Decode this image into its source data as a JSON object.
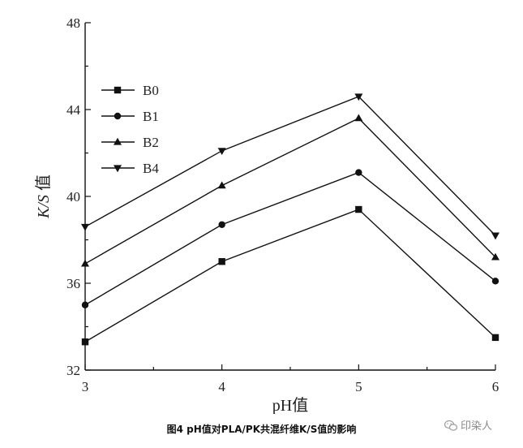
{
  "chart_data": {
    "type": "line",
    "x": [
      3,
      4,
      5,
      6
    ],
    "xlim": [
      3,
      6
    ],
    "ylim": [
      32,
      48
    ],
    "xticks": [
      "3",
      "4",
      "5",
      "6"
    ],
    "yticks": [
      "32",
      "36",
      "40",
      "44",
      "48"
    ],
    "xlabel": "pH值",
    "ylabel_italic": "K/S",
    "ylabel_suffix": " 值",
    "legend_position": "upper-left",
    "grid": false,
    "series": [
      {
        "name": "B0",
        "marker": "square",
        "values": [
          33.3,
          37.0,
          39.4,
          33.5
        ]
      },
      {
        "name": "B1",
        "marker": "circle",
        "values": [
          35.0,
          38.7,
          41.1,
          36.1
        ]
      },
      {
        "name": "B2",
        "marker": "triangle-up",
        "values": [
          36.9,
          40.5,
          43.6,
          37.2
        ]
      },
      {
        "name": "B4",
        "marker": "triangle-down",
        "values": [
          38.6,
          42.1,
          44.6,
          38.2
        ]
      }
    ]
  },
  "caption": "图4   pH值对PLA/PK共混纤维K/S值的影响",
  "watermark": {
    "text": "印染人",
    "icon": "wechat-icon"
  },
  "colors": {
    "line": "#111111"
  }
}
